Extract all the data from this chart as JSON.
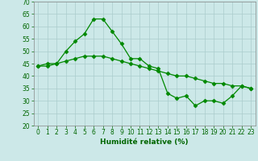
{
  "xlabel": "Humidité relative (%)",
  "background_color": "#cce8e8",
  "grid_color": "#aacccc",
  "line_color": "#008800",
  "xlim": [
    -0.5,
    23.5
  ],
  "ylim": [
    20,
    70
  ],
  "yticks": [
    20,
    25,
    30,
    35,
    40,
    45,
    50,
    55,
    60,
    65,
    70
  ],
  "xticks": [
    0,
    1,
    2,
    3,
    4,
    5,
    6,
    7,
    8,
    9,
    10,
    11,
    12,
    13,
    14,
    15,
    16,
    17,
    18,
    19,
    20,
    21,
    22,
    23
  ],
  "line1_x": [
    0,
    1,
    2,
    3,
    4,
    5,
    6,
    7,
    8,
    9,
    10,
    11,
    12,
    13,
    14,
    15,
    16,
    17,
    18,
    19,
    20,
    21,
    22,
    23
  ],
  "line1_y": [
    44,
    45,
    45,
    50,
    54,
    57,
    63,
    63,
    58,
    53,
    47,
    47,
    44,
    43,
    33,
    31,
    32,
    28,
    30,
    30,
    29,
    32,
    36,
    35
  ],
  "line2_x": [
    0,
    1,
    2,
    3,
    4,
    5,
    6,
    7,
    8,
    9,
    10,
    11,
    12,
    13,
    14,
    15,
    16,
    17,
    18,
    19,
    20,
    21,
    22,
    23
  ],
  "line2_y": [
    44,
    44,
    45,
    46,
    47,
    48,
    48,
    48,
    47,
    46,
    45,
    44,
    43,
    42,
    41,
    40,
    40,
    39,
    38,
    37,
    37,
    36,
    36,
    35
  ],
  "markersize": 2.5,
  "linewidth": 0.9
}
